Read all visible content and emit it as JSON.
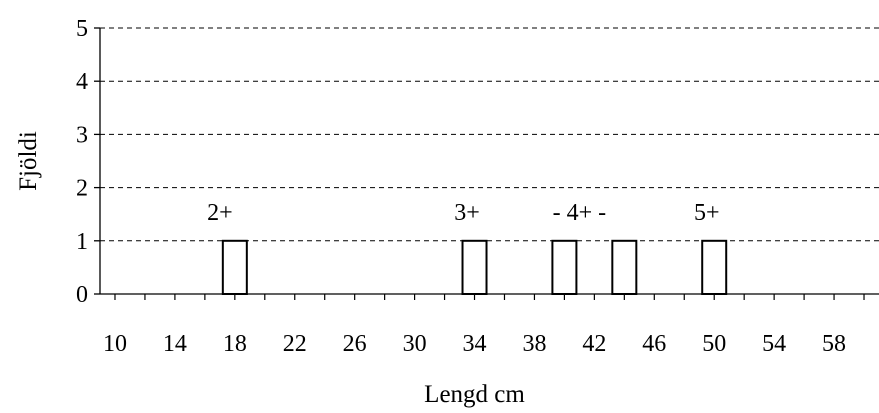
{
  "chart_data": {
    "type": "bar",
    "xlabel": "Lengd cm",
    "ylabel": "Fjöldi",
    "ylim": [
      0,
      5
    ],
    "yticks": [
      "0",
      "1",
      "2",
      "3",
      "4",
      "5"
    ],
    "x_tick_labels": [
      "10",
      "14",
      "18",
      "22",
      "26",
      "30",
      "34",
      "38",
      "42",
      "46",
      "50",
      "54",
      "58"
    ],
    "xlim": [
      9,
      61
    ],
    "grid": "horizontal dashed",
    "bars": [
      {
        "x": 18,
        "value": 1
      },
      {
        "x": 34,
        "value": 1
      },
      {
        "x": 40,
        "value": 1
      },
      {
        "x": 44,
        "value": 1
      },
      {
        "x": 50,
        "value": 1
      }
    ],
    "annotations": [
      {
        "text": "2+",
        "x": 17
      },
      {
        "text": "3+",
        "x": 33.5
      },
      {
        "text": "- 4+ -",
        "x": 41
      },
      {
        "text": "5+",
        "x": 49.5
      }
    ]
  }
}
